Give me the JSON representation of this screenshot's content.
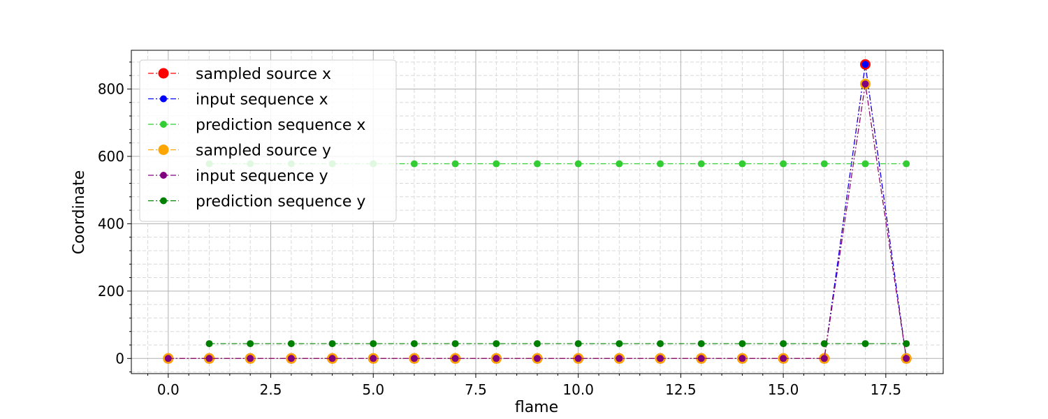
{
  "chart_data": {
    "type": "line",
    "xlabel": "flame",
    "ylabel": "Coordinate",
    "xlim": [
      -0.9,
      18.9
    ],
    "ylim": [
      -45,
      915
    ],
    "x_ticks": [
      0.0,
      2.5,
      5.0,
      7.5,
      10.0,
      12.5,
      15.0,
      17.5
    ],
    "x_tick_labels": [
      "0.0",
      "2.5",
      "5.0",
      "7.5",
      "10.0",
      "12.5",
      "15.0",
      "17.5"
    ],
    "y_ticks": [
      0,
      200,
      400,
      600,
      800
    ],
    "y_tick_labels": [
      "0",
      "200",
      "400",
      "600",
      "800"
    ],
    "grid": true,
    "minor_grid": true,
    "legend_position": "top-left",
    "series": [
      {
        "name": "sampled source x",
        "color": "#ff0000",
        "marker_size": "large",
        "x": [
          0,
          1,
          2,
          3,
          4,
          5,
          6,
          7,
          8,
          9,
          10,
          11,
          12,
          13,
          14,
          15,
          16,
          17,
          18
        ],
        "values": [
          0,
          0,
          0,
          0,
          0,
          0,
          0,
          0,
          0,
          0,
          0,
          0,
          0,
          0,
          0,
          0,
          0,
          873,
          0
        ]
      },
      {
        "name": "input sequence x",
        "color": "#0000ff",
        "marker_size": "small",
        "x": [
          0,
          1,
          2,
          3,
          4,
          5,
          6,
          7,
          8,
          9,
          10,
          11,
          12,
          13,
          14,
          15,
          16,
          17,
          18
        ],
        "values": [
          0,
          0,
          0,
          0,
          0,
          0,
          0,
          0,
          0,
          0,
          0,
          0,
          0,
          0,
          0,
          0,
          0,
          873,
          0
        ]
      },
      {
        "name": "prediction sequence x",
        "color": "#32cd32",
        "marker_size": "small",
        "x": [
          1,
          2,
          3,
          4,
          5,
          6,
          7,
          8,
          9,
          10,
          11,
          12,
          13,
          14,
          15,
          16,
          17,
          18
        ],
        "values": [
          578,
          578,
          578,
          578,
          578,
          578,
          578,
          578,
          578,
          578,
          578,
          578,
          578,
          578,
          578,
          578,
          578,
          578
        ]
      },
      {
        "name": "sampled source y",
        "color": "#ffa500",
        "marker_size": "large",
        "x": [
          0,
          1,
          2,
          3,
          4,
          5,
          6,
          7,
          8,
          9,
          10,
          11,
          12,
          13,
          14,
          15,
          16,
          17,
          18
        ],
        "values": [
          0,
          0,
          0,
          0,
          0,
          0,
          0,
          0,
          0,
          0,
          0,
          0,
          0,
          0,
          0,
          0,
          0,
          815,
          0
        ]
      },
      {
        "name": "input sequence y",
        "color": "#800080",
        "marker_size": "small",
        "x": [
          0,
          1,
          2,
          3,
          4,
          5,
          6,
          7,
          8,
          9,
          10,
          11,
          12,
          13,
          14,
          15,
          16,
          17,
          18
        ],
        "values": [
          0,
          0,
          0,
          0,
          0,
          0,
          0,
          0,
          0,
          0,
          0,
          0,
          0,
          0,
          0,
          0,
          0,
          815,
          0
        ]
      },
      {
        "name": "prediction sequence y",
        "color": "#008000",
        "marker_size": "small",
        "x": [
          1,
          2,
          3,
          4,
          5,
          6,
          7,
          8,
          9,
          10,
          11,
          12,
          13,
          14,
          15,
          16,
          17,
          18
        ],
        "values": [
          44,
          44,
          44,
          44,
          44,
          44,
          44,
          44,
          44,
          44,
          44,
          44,
          44,
          44,
          44,
          44,
          44,
          44
        ]
      }
    ]
  }
}
